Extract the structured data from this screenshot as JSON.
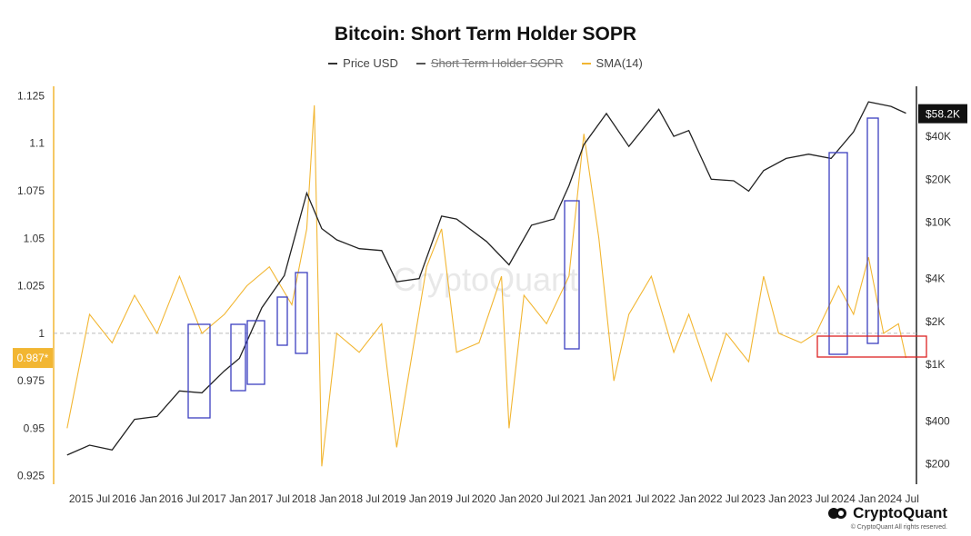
{
  "chart_data": {
    "type": "line",
    "title": "Bitcoin: Short Term Holder SOPR",
    "legend": [
      {
        "name": "Price USD",
        "color": "#333333",
        "hidden": false
      },
      {
        "name": "Short Term Holder SOPR",
        "color": "#555555",
        "hidden": true
      },
      {
        "name": "SMA(14)",
        "color": "#f2b632",
        "hidden": false
      }
    ],
    "x_ticks": [
      "2015 Jul",
      "2016 Jan",
      "2016 Jul",
      "2017 Jan",
      "2017 Jul",
      "2018 Jan",
      "2018 Jul",
      "2019 Jan",
      "2019 Jul",
      "2020 Jan",
      "2020 Jul",
      "2021 Jan",
      "2021 Jul",
      "2022 Jan",
      "2022 Jul",
      "2023 Jan",
      "2023 Jul",
      "2024 Jan",
      "2024 Jul"
    ],
    "left_axis": {
      "ticks": [
        "1.125",
        "1.1",
        "1.075",
        "1.05",
        "1.025",
        "1",
        "0.975",
        "0.95",
        "0.925"
      ],
      "ylim": [
        0.922,
        1.13
      ],
      "current_label": "0.987*"
    },
    "right_axis": {
      "scale": "log",
      "ticks": [
        "$40K",
        "$20K",
        "$10K",
        "$4K",
        "$2K",
        "$1K",
        "$400",
        "$200"
      ],
      "current_label": "$58.2K"
    },
    "reference_line": 1,
    "price_series": {
      "name": "Price USD",
      "x": [
        "2015 Apr",
        "2015 Jul",
        "2015 Oct",
        "2016 Jan",
        "2016 Apr",
        "2016 Jul",
        "2016 Oct",
        "2017 Jan",
        "2017 Mar",
        "2017 Jun",
        "2017 Sep",
        "2017 Dec",
        "2018 Feb",
        "2018 Apr",
        "2018 Jul",
        "2018 Oct",
        "2018 Dec",
        "2019 Mar",
        "2019 Jun",
        "2019 Aug",
        "2019 Dec",
        "2020 Mar",
        "2020 Jun",
        "2020 Sep",
        "2020 Nov",
        "2021 Jan",
        "2021 Apr",
        "2021 Jul",
        "2021 Nov",
        "2022 Jan",
        "2022 Mar",
        "2022 Jun",
        "2022 Sep",
        "2022 Nov",
        "2023 Jan",
        "2023 Apr",
        "2023 Jul",
        "2023 Oct",
        "2024 Jan",
        "2024 Mar",
        "2024 Jun",
        "2024 Aug"
      ],
      "values": [
        230,
        270,
        250,
        410,
        430,
        650,
        630,
        900,
        1100,
        2500,
        4200,
        16000,
        9000,
        7500,
        6500,
        6300,
        3800,
        4000,
        11000,
        10500,
        7300,
        5000,
        9500,
        10500,
        18000,
        35000,
        58000,
        34000,
        62000,
        40000,
        44000,
        20000,
        19500,
        16500,
        23000,
        28000,
        30000,
        28000,
        43000,
        70000,
        65000,
        58200
      ]
    },
    "sma_series": {
      "name": "SMA(14)",
      "x": [
        "2015 Apr",
        "2015 Jul",
        "2015 Oct",
        "2016 Jan",
        "2016 Apr",
        "2016 Jul",
        "2016 Oct",
        "2017 Jan",
        "2017 Apr",
        "2017 Jul",
        "2017 Oct",
        "2017 Dec",
        "2018 Jan",
        "2018 Feb",
        "2018 Apr",
        "2018 Jul",
        "2018 Oct",
        "2018 Dec",
        "2019 Apr",
        "2019 Jun",
        "2019 Aug",
        "2019 Nov",
        "2020 Feb",
        "2020 Mar",
        "2020 May",
        "2020 Aug",
        "2020 Nov",
        "2021 Jan",
        "2021 Mar",
        "2021 May",
        "2021 Jul",
        "2021 Oct",
        "2022 Jan",
        "2022 Mar",
        "2022 Jun",
        "2022 Aug",
        "2022 Nov",
        "2023 Jan",
        "2023 Mar",
        "2023 Jun",
        "2023 Aug",
        "2023 Nov",
        "2024 Jan",
        "2024 Mar",
        "2024 May",
        "2024 Jul",
        "2024 Aug"
      ],
      "values": [
        0.95,
        1.01,
        0.995,
        1.02,
        1.0,
        1.03,
        1.0,
        1.01,
        1.025,
        1.035,
        1.015,
        1.055,
        1.12,
        0.93,
        1.0,
        0.99,
        1.005,
        0.94,
        1.035,
        1.055,
        0.99,
        0.995,
        1.03,
        0.95,
        1.02,
        1.005,
        1.03,
        1.105,
        1.05,
        0.975,
        1.01,
        1.03,
        0.99,
        1.01,
        0.975,
        1.0,
        0.985,
        1.03,
        1.0,
        0.995,
        1.0,
        1.025,
        1.01,
        1.04,
        1.0,
        1.005,
        0.987
      ]
    },
    "highlight_boxes": 9,
    "red_box_count": 1
  },
  "brand": {
    "name": "CryptoQuant",
    "copyright": "© CryptoQuant All rights reserved.",
    "watermark": "CryptoQuant"
  }
}
